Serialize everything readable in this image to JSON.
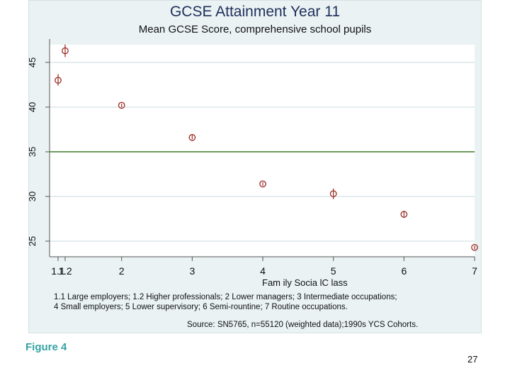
{
  "chart_data": {
    "type": "scatter",
    "title": "GCSE Attainment Year 11",
    "subtitle": "Mean GCSE Score, comprehensive school pupils",
    "xlabel": "Fam ily Socia lC lass",
    "ylabel": "",
    "categories": [
      "1.1",
      "1.2",
      "2",
      "3",
      "4",
      "5",
      "6",
      "7"
    ],
    "x": [
      1.1,
      1.2,
      2,
      3,
      4,
      5,
      6,
      7
    ],
    "values": [
      43.0,
      46.3,
      40.2,
      36.6,
      31.4,
      30.3,
      28.0,
      24.3
    ],
    "error_low": [
      42.4,
      45.6,
      40.0,
      36.4,
      31.2,
      29.7,
      27.6,
      24.1
    ],
    "error_high": [
      43.7,
      47.0,
      40.4,
      36.9,
      31.6,
      30.9,
      28.4,
      24.5
    ],
    "reference_line": 35,
    "y_ticks": [
      "25",
      "30",
      "35",
      "40",
      "45"
    ],
    "x_ticks": [
      "1.1",
      "1.2",
      "2",
      "3",
      "4",
      "5",
      "6",
      "7"
    ],
    "xlim": [
      0.95,
      7.02
    ],
    "ylim": [
      24.2,
      47.5
    ],
    "grid": true,
    "colors": {
      "marker": "#9a2a22",
      "errorbar": "#9a2a22",
      "reference_line": "#3f7a2c",
      "grid": "#c9dbde",
      "plot_background": "#ffffff",
      "outer_background": "#eaf2f3"
    }
  },
  "notes": {
    "line1": "1.1 Large employers; 1.2 Higher professionals; 2 Lower managers; 3 Intermediate occupations;",
    "line2": "4 Small employers; 5 Lower supervisory; 6 Semi-rountine; 7 Routine occupations.",
    "source": "Source: SN5765, n=55120 (weighted data);1990s YCS Cohorts."
  },
  "figure_label": "Figure 4",
  "page_number": "27"
}
